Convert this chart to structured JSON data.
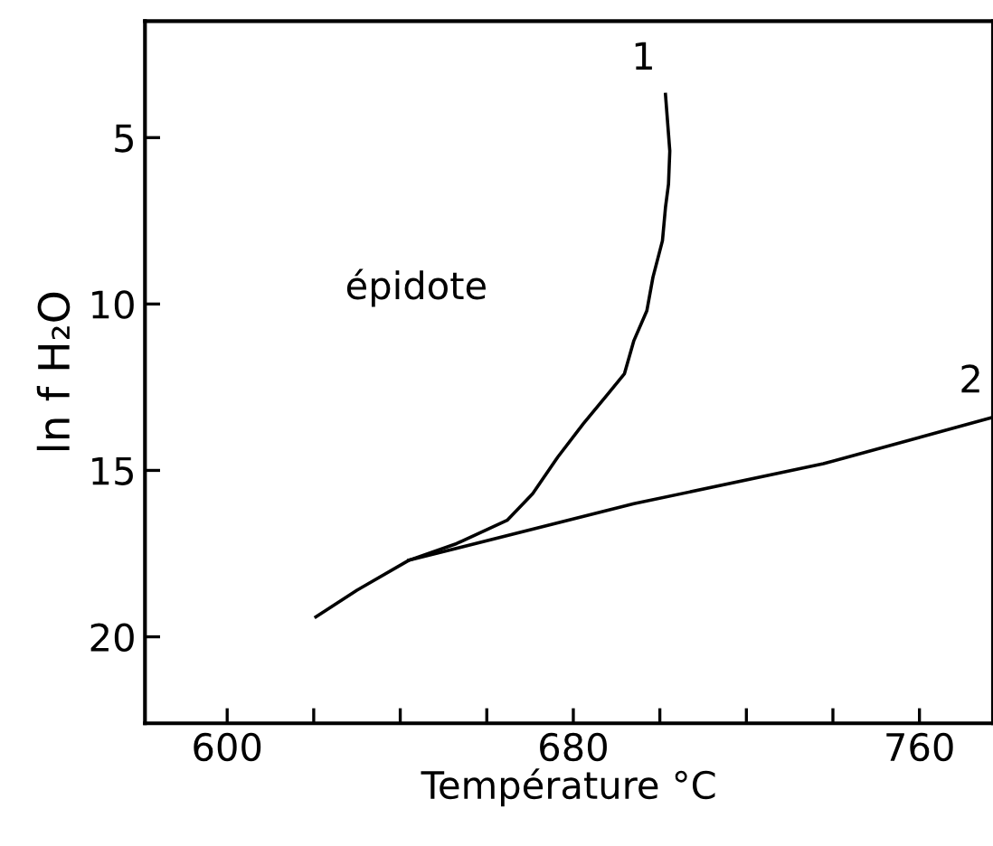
{
  "chart_data": {
    "type": "line",
    "xlabel": "Température °C",
    "ylabel": "ln f H₂O",
    "xlim": [
      581,
      777
    ],
    "ylim": [
      22.6,
      1.5
    ],
    "xticks": [
      600,
      {
        "value": 620,
        "label": null
      },
      {
        "value": 640,
        "label": null
      },
      {
        "value": 660,
        "label": null
      },
      680,
      {
        "value": 700,
        "label": null
      },
      {
        "value": 720,
        "label": null
      },
      {
        "value": 740,
        "label": null
      },
      760
    ],
    "yticks": [
      5,
      10,
      15,
      20
    ],
    "grid": false,
    "marker": "none",
    "line_style": "solid",
    "series": [
      {
        "color": "#000000",
        "x": [
          620.5,
          630,
          642,
          653,
          664.7,
          670.6,
          676.4,
          682.3,
          688,
          691.8,
          694,
          697,
          698.4,
          700.6,
          701.3,
          702,
          702.3,
          701.3
        ],
        "values": [
          19.4,
          18.6,
          17.7,
          17.2,
          16.5,
          15.7,
          14.6,
          13.6,
          12.7,
          12.1,
          11.1,
          10.2,
          9.2,
          8.1,
          7.1,
          6.4,
          5.4,
          3.7
        ]
      },
      {
        "color": "#000000",
        "x": [
          642,
          694,
          737.8,
          777
        ],
        "values": [
          17.7,
          16.0,
          14.8,
          13.4
        ]
      }
    ],
    "annotations": [
      "1",
      "2",
      "épidote"
    ]
  }
}
